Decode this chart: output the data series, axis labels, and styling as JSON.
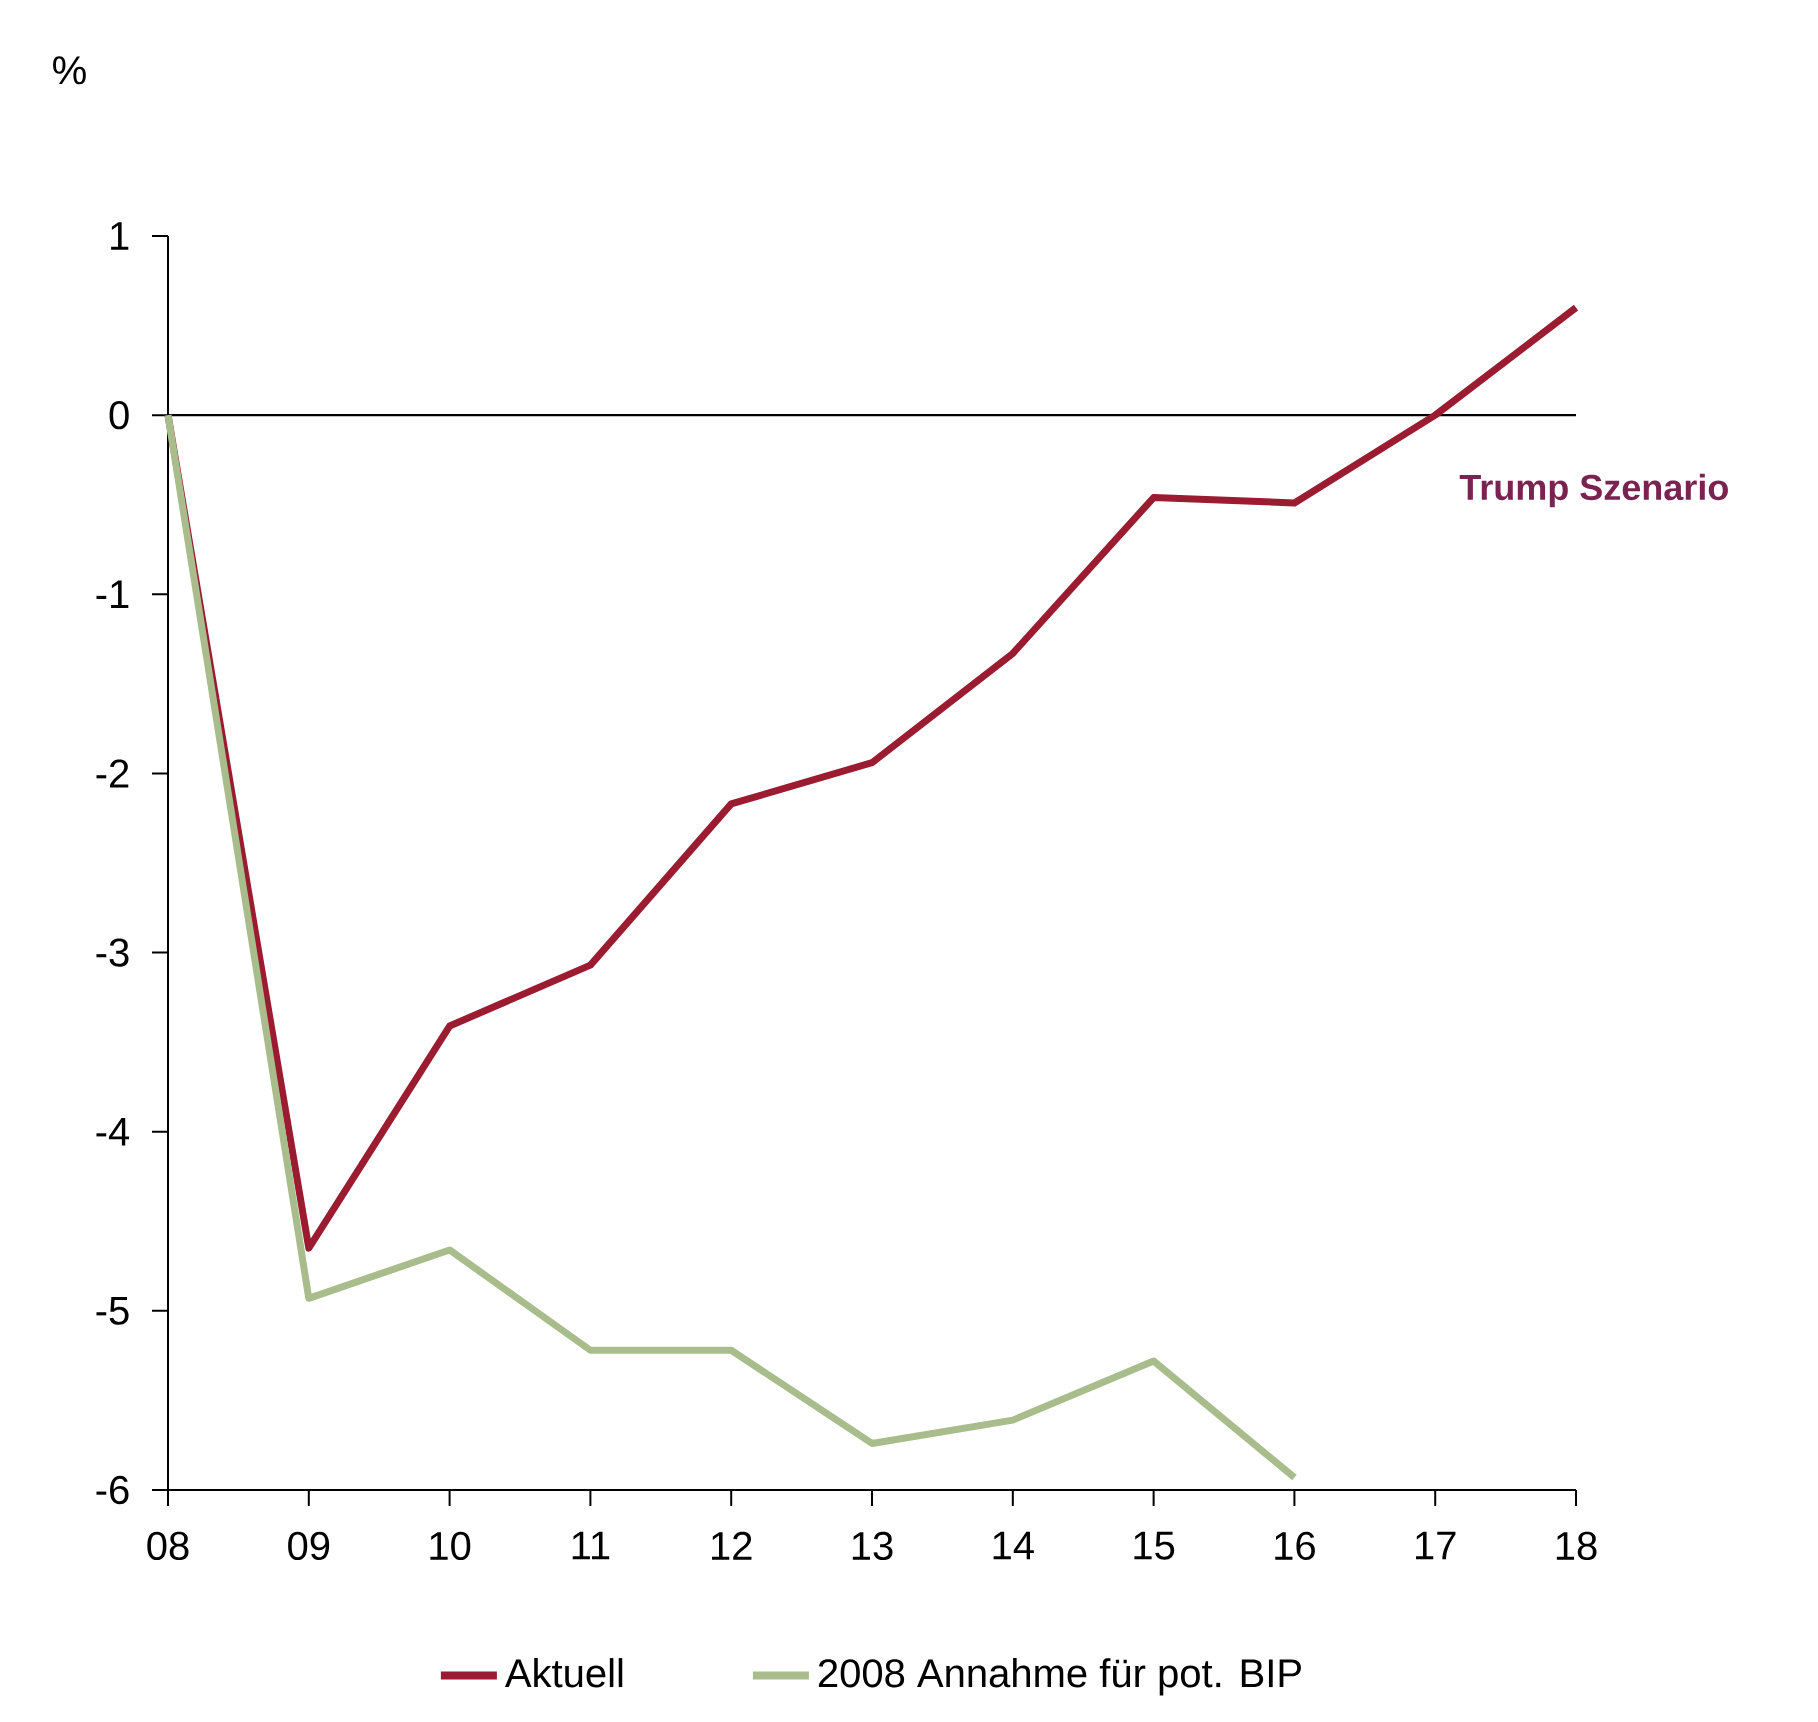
{
  "chart_data": {
    "type": "line",
    "ylabel": "%",
    "categories": [
      "08",
      "09",
      "10",
      "11",
      "12",
      "13",
      "14",
      "15",
      "16",
      "17",
      "18"
    ],
    "series": [
      {
        "name": "Aktuell",
        "color": "#9b1b30",
        "values": [
          0,
          -4.65,
          -3.41,
          -3.07,
          -2.17,
          -1.94,
          -1.33,
          -0.46,
          -0.49,
          0.0,
          0.6
        ]
      },
      {
        "name": "2008 Annahme für pot. BIP",
        "color": "#a9bc8c",
        "values": [
          0,
          -4.93,
          -4.66,
          -5.22,
          -5.22,
          -5.74,
          -5.61,
          -5.28,
          -5.93,
          null,
          null
        ]
      }
    ],
    "ylim": [
      -6,
      1
    ],
    "yticks": [
      -6,
      -5,
      -4,
      -3,
      -2,
      -1,
      0,
      1
    ],
    "ref_lines": [
      {
        "axis": "y",
        "value": 0,
        "color": "#000000"
      }
    ],
    "annotations": [
      "Trump Szenario"
    ],
    "legend": "bottom"
  }
}
